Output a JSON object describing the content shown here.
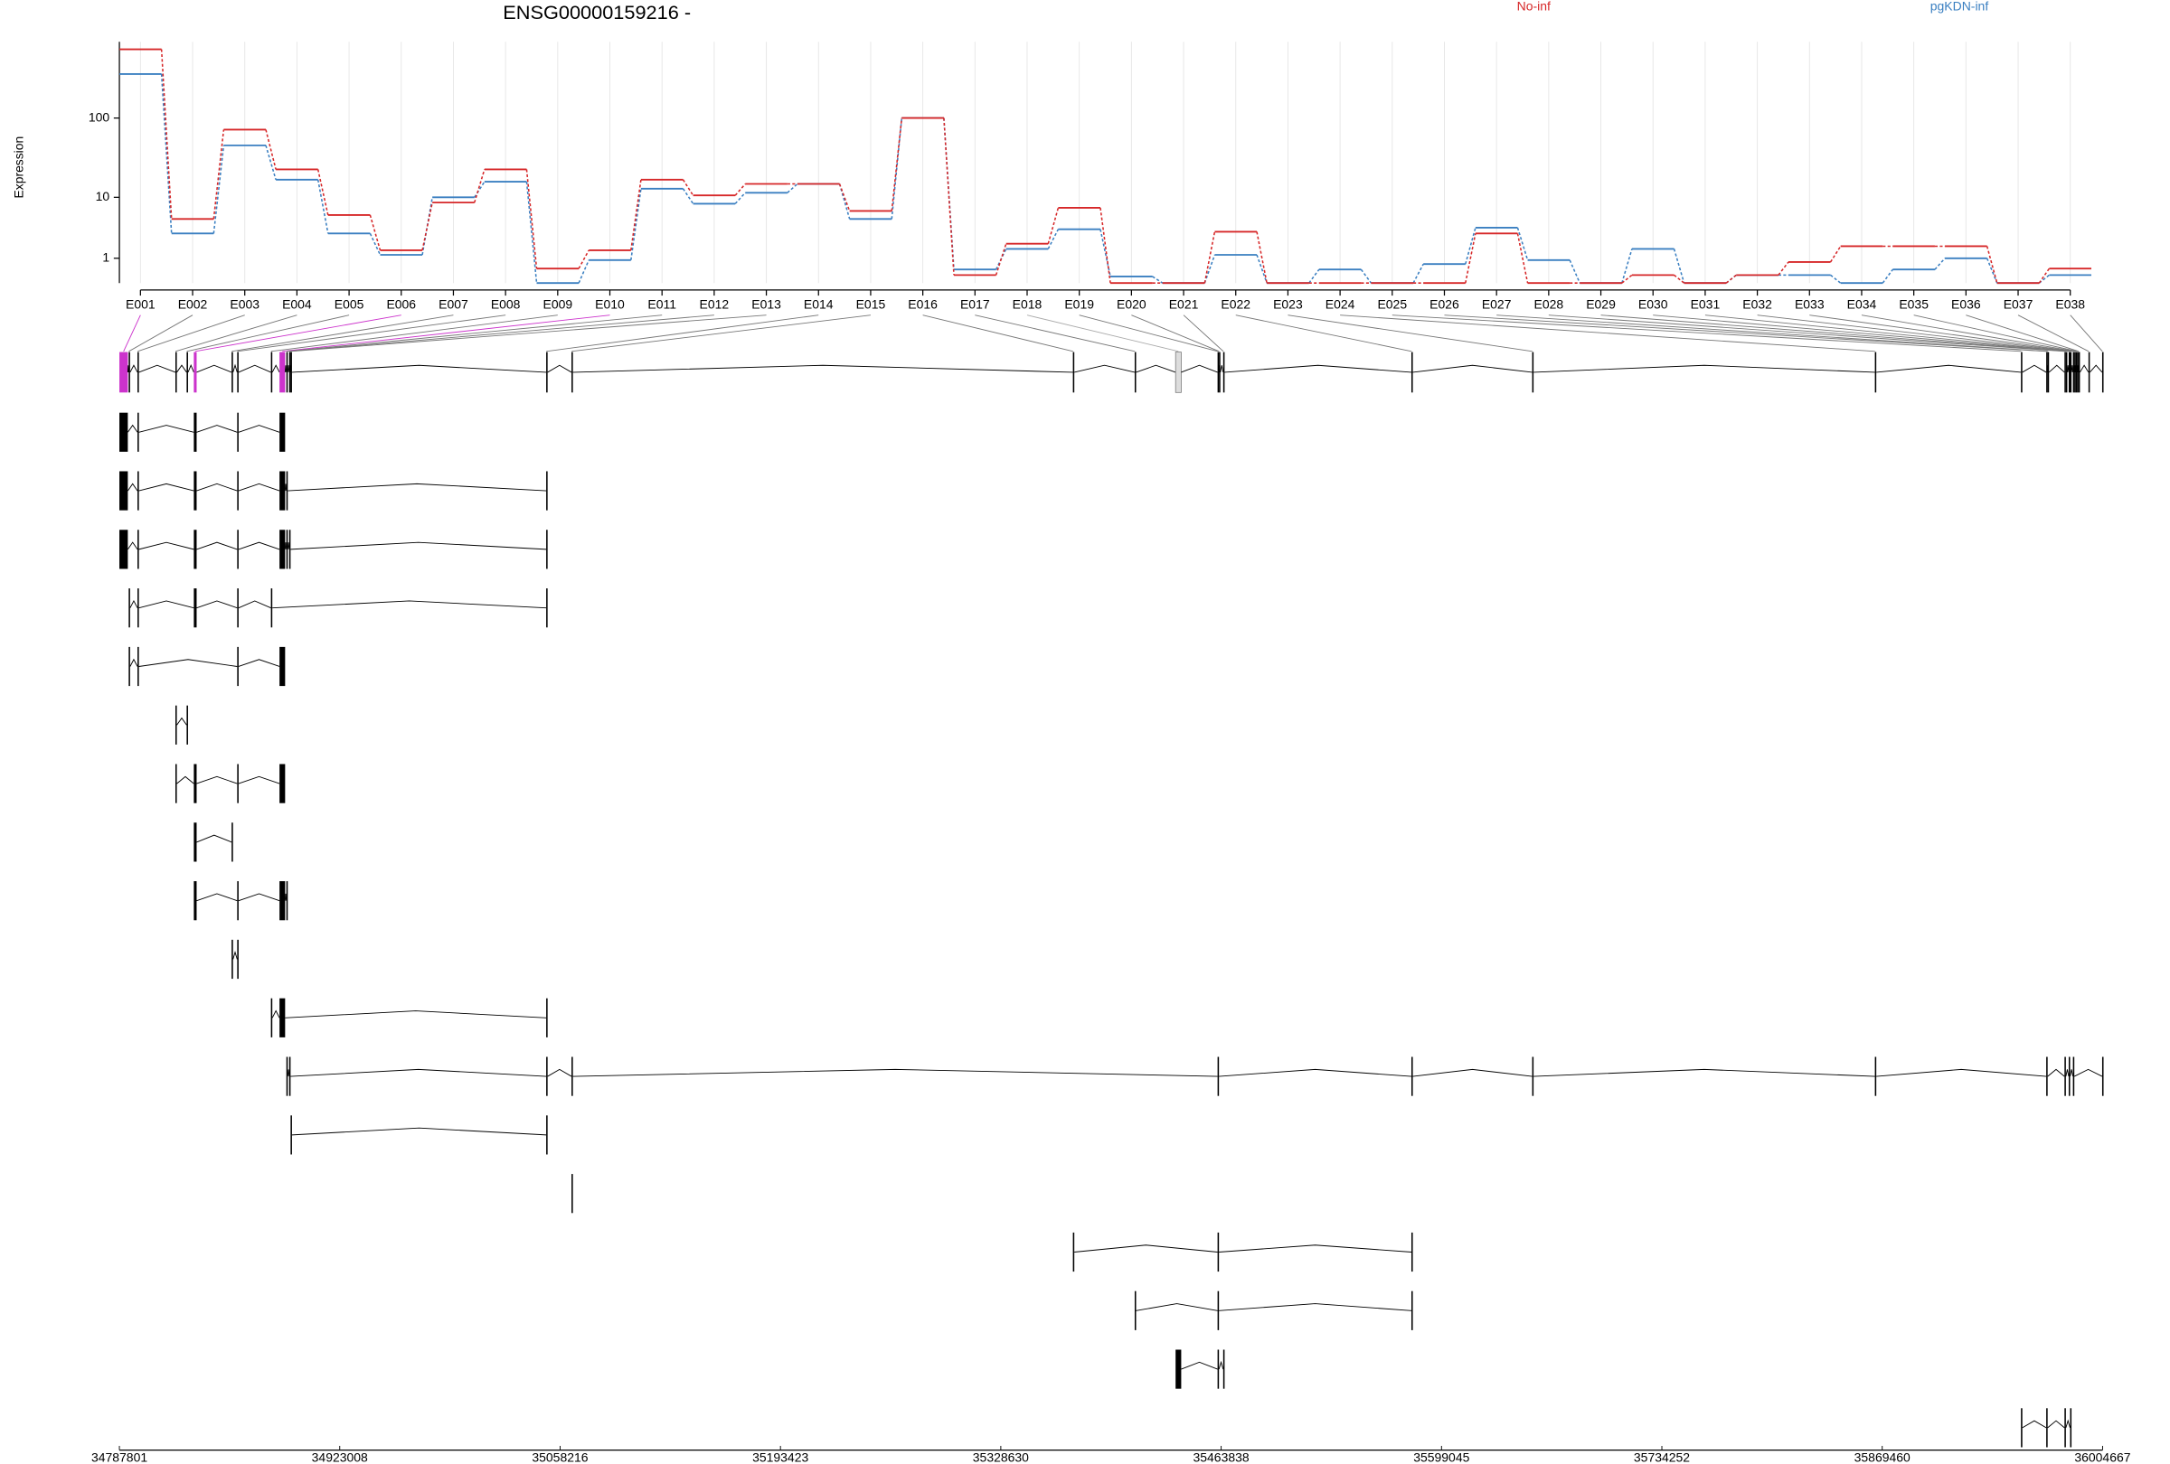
{
  "chart_data": {
    "type": "line",
    "title": "ENSG00000159216 -",
    "y_label": "Expression",
    "categories": [
      "E001",
      "E002",
      "E003",
      "E004",
      "E005",
      "E006",
      "E007",
      "E008",
      "E009",
      "E010",
      "E011",
      "E012",
      "E013",
      "E014",
      "E015",
      "E016",
      "E017",
      "E018",
      "E019",
      "E020",
      "E021",
      "E022",
      "E023",
      "E024",
      "E025",
      "E026",
      "E027",
      "E028",
      "E029",
      "E030",
      "E031",
      "E032",
      "E033",
      "E034",
      "E035",
      "E036",
      "E037",
      "E038"
    ],
    "series": [
      {
        "name": "No-inf",
        "color": "#d62728",
        "values": [
          690,
          5,
          72,
          23,
          5.7,
          1.5,
          8.5,
          23,
          0.5,
          1.5,
          17,
          10.6,
          15,
          15,
          6.5,
          100,
          0.25,
          2,
          7.2,
          0,
          0,
          3.2,
          0,
          0,
          0,
          0,
          3,
          0,
          0,
          0.25,
          0,
          0.25,
          0.8,
          1.8,
          1.8,
          1.8,
          0,
          0.5
        ]
      },
      {
        "name": "pgKDN-inf",
        "color": "#3a7fc1",
        "values": [
          345,
          3,
          46,
          17,
          3,
          1.2,
          10,
          16,
          0,
          0.9,
          13,
          8.2,
          11.5,
          15,
          5,
          100,
          0.46,
          1.6,
          3.5,
          0.2,
          0,
          1.2,
          0,
          0.46,
          0,
          0.7,
          3.7,
          0.9,
          0,
          1.6,
          0,
          0.25,
          0.25,
          0,
          0.46,
          1,
          0,
          0.25
        ]
      }
    ],
    "ylim": [
      0,
      850
    ],
    "yticks": [
      1,
      10,
      100
    ],
    "log_offset": 1,
    "grid": true,
    "legend": "top",
    "gene_model": {
      "exons": [
        [
          34787801,
          34792972
        ],
        [
          34793500,
          34793700
        ],
        [
          34798904,
          34799104
        ],
        [
          34822173,
          34822373
        ],
        [
          34829067,
          34829267
        ],
        [
          34833476,
          34835200
        ],
        [
          34856645,
          34856845
        ],
        [
          34860092,
          34860292
        ],
        [
          34880775,
          34880975
        ],
        [
          34886046,
          34889493
        ],
        [
          34890255,
          34890455
        ],
        [
          34891979,
          34892179
        ],
        [
          34892841,
          34893041
        ],
        [
          35049688,
          35049888
        ],
        [
          35065201,
          35065401
        ],
        [
          35372863,
          35373063
        ],
        [
          35410782,
          35410982
        ],
        [
          35435875,
          35439322
        ],
        [
          35461629,
          35461829
        ],
        [
          35462491,
          35462691
        ],
        [
          35465076,
          35465276
        ],
        [
          35580557,
          35580757
        ],
        [
          35654672,
          35654872
        ],
        [
          35864951,
          35865151
        ],
        [
          35954578,
          35954778
        ],
        [
          35970090,
          35970290
        ],
        [
          35970952,
          35971152
        ],
        [
          35981294,
          35981494
        ],
        [
          35982155,
          35982355
        ],
        [
          35983879,
          35984079
        ],
        [
          35984741,
          35984941
        ],
        [
          35986464,
          35986664
        ],
        [
          35987326,
          35987526
        ],
        [
          35988188,
          35988388
        ],
        [
          35989050,
          35989250
        ],
        [
          35989912,
          35990112
        ],
        [
          35996000,
          35996200
        ],
        [
          36004400,
          36004667
        ]
      ],
      "exon_colors": [
        "#cc33cc",
        "#000000",
        "#000000",
        "#000000",
        "#000000",
        "#cc33cc",
        "#000000",
        "#000000",
        "#000000",
        "#cc33cc",
        "#000000",
        "#000000",
        "#000000",
        "#000000",
        "#000000",
        "#000000",
        "#000000",
        "#aaaaaa",
        "#000000",
        "#000000",
        "#000000",
        "#000000",
        "#000000",
        "#000000",
        "#000000",
        "#000000",
        "#000000",
        "#000000",
        "#000000",
        "#000000",
        "#000000",
        "#000000",
        "#000000",
        "#000000",
        "#000000",
        "#000000",
        "#000000",
        "#000000"
      ],
      "transcripts": [
        [
          0,
          2,
          5,
          7,
          9
        ],
        [
          0,
          2,
          5,
          7,
          9,
          10,
          13
        ],
        [
          0,
          2,
          5,
          7,
          9,
          10,
          11,
          13
        ],
        [
          1,
          2,
          5,
          7,
          8,
          13
        ],
        [
          1,
          2,
          7,
          9
        ],
        [
          3,
          4
        ],
        [
          3,
          5,
          7,
          9
        ],
        [
          5,
          6
        ],
        [
          5,
          7,
          9,
          10
        ],
        [
          6,
          7
        ],
        [
          8,
          9,
          13
        ],
        [
          10,
          11,
          13,
          14,
          18,
          21,
          22,
          23,
          25,
          27,
          29,
          31,
          37
        ],
        [
          12,
          13
        ],
        [
          14
        ],
        [
          15,
          18,
          21
        ],
        [
          16,
          18,
          21
        ],
        [
          17,
          18,
          20
        ],
        [
          24,
          25,
          27,
          30
        ]
      ],
      "genome_lim": [
        34787801,
        36004667
      ],
      "genome_ticks": [
        34787801,
        34923008,
        35058216,
        35193423,
        35328630,
        35463838,
        35599045,
        35734252,
        35869460,
        36004667
      ]
    }
  }
}
